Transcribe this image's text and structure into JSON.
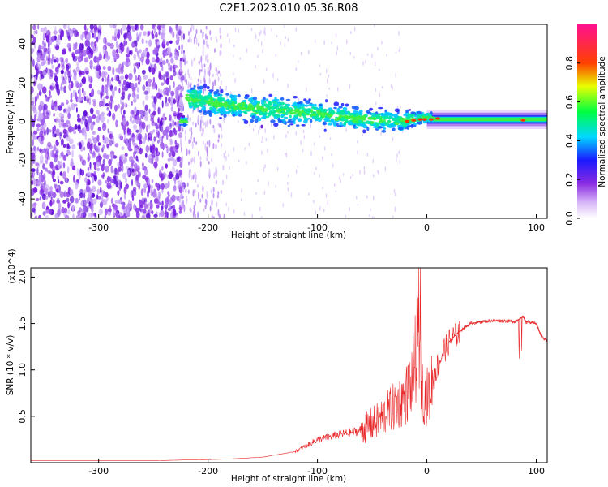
{
  "title": "C2E1.2023.010.05.36.R08",
  "colors": {
    "snr_line": "#e8282a",
    "frame": "#000000"
  },
  "chart_data": [
    {
      "type": "heatmap",
      "xlabel": "Height of straight line (km)",
      "ylabel": "Frequency (Hz)",
      "xlim": [
        -362,
        110
      ],
      "ylim": [
        -50,
        50
      ],
      "xticks": [
        -300,
        -200,
        -100,
        0,
        100
      ],
      "yticks": [
        -40,
        -20,
        0,
        20,
        40
      ],
      "colorbar": {
        "label": "Normalized spectral amplitude",
        "range": [
          0,
          1
        ],
        "ticks": [
          "0.0",
          "0.2",
          "0.4",
          "0.6",
          "0.8"
        ],
        "tick_values": [
          0.0,
          0.2,
          0.4,
          0.6,
          0.8
        ],
        "colormap": "rainbow (white-purple-blue-cyan-green-yellow-red-magenta)"
      },
      "ridge": [
        {
          "x": -220,
          "freq": 12,
          "width": 10
        },
        {
          "x": -180,
          "freq": 8,
          "width": 9
        },
        {
          "x": -140,
          "freq": 6,
          "width": 10
        },
        {
          "x": -100,
          "freq": 4,
          "width": 9
        },
        {
          "x": -60,
          "freq": 1,
          "width": 8
        },
        {
          "x": -25,
          "freq": 0,
          "width": 7
        },
        {
          "x": 0,
          "freq": 2,
          "width": 4
        },
        {
          "x": 50,
          "freq": 1,
          "width": 3
        },
        {
          "x": 110,
          "freq": 0,
          "width": 3
        }
      ]
    },
    {
      "type": "line",
      "xlabel": "Height of straight line (km)",
      "ylabel": "SNR (10 * v/v)",
      "y_multiplier": "(x10^4)",
      "xlim": [
        -362,
        110
      ],
      "ylim": [
        0,
        2.1
      ],
      "xticks": [
        -300,
        -200,
        -100,
        0,
        100
      ],
      "yticks": [
        "0.5",
        "1.0",
        "1.5",
        "2.0"
      ],
      "ytick_values": [
        0.5,
        1.0,
        1.5,
        2.0
      ],
      "series": [
        {
          "x": [
            -362,
            -250,
            -220,
            -210,
            -180,
            -150,
            -120,
            -100,
            -80,
            -60,
            -45,
            -35,
            -25,
            -18,
            -12,
            -8,
            -5,
            0,
            5,
            10,
            15,
            20,
            30,
            40,
            50,
            60,
            70,
            80,
            85,
            88,
            90,
            100,
            105,
            110
          ],
          "y": [
            0.02,
            0.02,
            0.03,
            0.03,
            0.04,
            0.06,
            0.12,
            0.25,
            0.3,
            0.35,
            0.45,
            0.55,
            0.65,
            0.75,
            1.0,
            1.3,
            0.8,
            0.7,
            0.9,
            1.05,
            1.2,
            1.3,
            1.42,
            1.5,
            1.52,
            1.53,
            1.53,
            1.52,
            1.55,
            1.58,
            1.52,
            1.5,
            1.35,
            1.32
          ]
        }
      ]
    }
  ]
}
